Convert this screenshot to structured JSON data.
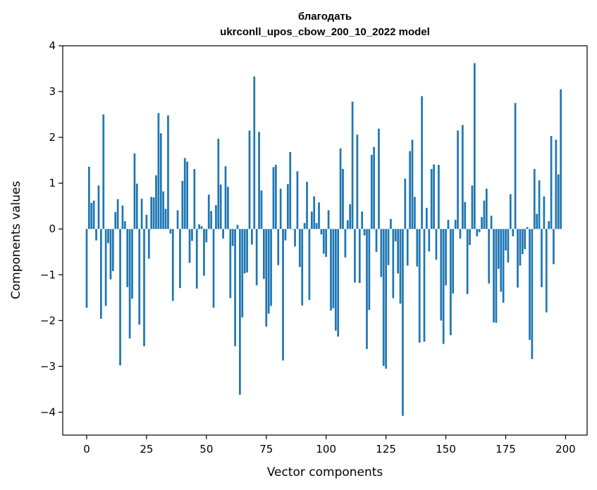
{
  "chart_data": {
    "type": "bar",
    "title_line1": "благодать",
    "title_line2": "ukrconll_upos_cbow_200_10_2022 model",
    "xlabel": "Vector components",
    "ylabel": "Components values",
    "xlim": [
      -10,
      209
    ],
    "ylim": [
      -4.5,
      4.0
    ],
    "xticks": [
      0,
      25,
      50,
      75,
      100,
      125,
      150,
      175,
      200
    ],
    "yticks": [
      -4,
      -3,
      -2,
      -1,
      0,
      1,
      2,
      3,
      4
    ],
    "xtick_labels": [
      "0",
      "25",
      "50",
      "75",
      "100",
      "125",
      "150",
      "175",
      "200"
    ],
    "ytick_labels": [
      "−4",
      "−3",
      "−2",
      "−1",
      "0",
      "1",
      "2",
      "3",
      "4"
    ],
    "bar_color": "#1f77b4",
    "values": [
      -1.72,
      1.36,
      0.57,
      0.62,
      -0.25,
      0.95,
      -1.96,
      2.5,
      -1.68,
      -0.31,
      -1.1,
      -0.92,
      0.37,
      0.65,
      -2.98,
      0.51,
      0.17,
      -1.27,
      -2.39,
      -1.52,
      1.65,
      0.99,
      -2.09,
      0.66,
      -2.56,
      0.31,
      -0.65,
      0.7,
      0.69,
      1.17,
      2.53,
      2.09,
      0.82,
      0.44,
      2.48,
      -0.1,
      -1.57,
      0.0,
      0.41,
      -1.29,
      1.05,
      1.55,
      1.47,
      -0.74,
      -0.26,
      1.31,
      -1.3,
      0.1,
      0.06,
      -1.02,
      -0.29,
      0.75,
      0.39,
      -1.72,
      0.52,
      1.97,
      0.97,
      -0.21,
      1.37,
      0.92,
      -1.51,
      -0.37,
      -2.56,
      0.09,
      -3.62,
      -1.93,
      -0.97,
      -0.95,
      2.15,
      -0.34,
      3.33,
      -1.23,
      2.12,
      0.84,
      -1.09,
      -2.13,
      -1.85,
      -1.68,
      1.35,
      1.4,
      -0.79,
      0.88,
      -2.87,
      -0.25,
      0.98,
      1.68,
      -0.01,
      -0.38,
      1.26,
      -0.83,
      -1.67,
      0.13,
      1.03,
      -1.55,
      0.38,
      0.71,
      0.13,
      0.58,
      -0.12,
      -0.54,
      -0.61,
      0.41,
      -1.78,
      -1.73,
      -2.22,
      -2.35,
      1.76,
      1.31,
      -0.62,
      0.19,
      0.54,
      2.78,
      -1.17,
      2.06,
      -1.18,
      0.38,
      -0.14,
      -2.62,
      -1.77,
      1.62,
      1.79,
      -0.5,
      2.19,
      -1.05,
      -2.99,
      -3.05,
      -0.79,
      0.22,
      -1.51,
      -0.27,
      -0.97,
      -1.63,
      -4.08,
      1.1,
      -0.8,
      1.7,
      1.95,
      0.7,
      -0.82,
      -2.48,
      2.9,
      -2.46,
      0.46,
      -0.49,
      1.31,
      1.41,
      -0.67,
      1.4,
      -2.0,
      -2.51,
      -1.23,
      0.2,
      -2.32,
      -1.41,
      0.2,
      2.15,
      -0.21,
      2.27,
      0.59,
      -1.42,
      -0.35,
      0.95,
      3.62,
      -0.16,
      -0.07,
      0.26,
      0.62,
      0.88,
      -1.19,
      0.29,
      -2.04,
      -2.05,
      -0.87,
      -1.37,
      -1.61,
      -0.47,
      -0.73,
      0.76,
      -0.16,
      2.75,
      -1.28,
      -0.8,
      -0.55,
      -0.44,
      0.04,
      -2.42,
      -2.84,
      1.31,
      0.33,
      1.06,
      -1.27,
      0.71,
      -1.82,
      0.17,
      2.03,
      -0.77,
      1.95,
      1.19,
      3.05
    ]
  }
}
